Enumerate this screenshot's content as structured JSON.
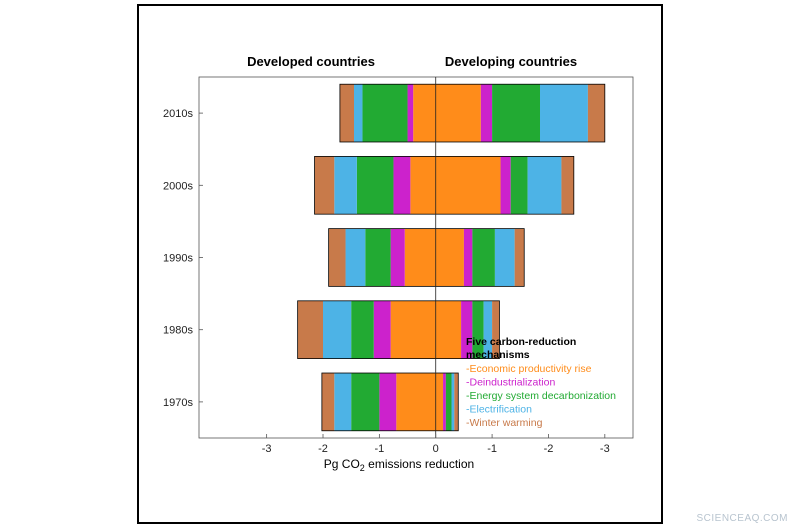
{
  "chart_data": {
    "type": "bar",
    "orientation": "horizontal-stacked-diverging",
    "panels": [
      "Developed countries",
      "Developing countries"
    ],
    "categories": [
      "2010s",
      "2000s",
      "1990s",
      "1980s",
      "1970s"
    ],
    "xlim": [
      -4.2,
      3.5
    ],
    "x_ticks": [
      {
        "value": -3,
        "label": "-3"
      },
      {
        "value": -2,
        "label": "-2"
      },
      {
        "value": -1,
        "label": "-1"
      },
      {
        "value": 0,
        "label": "0"
      },
      {
        "value": 1,
        "label": "-1"
      },
      {
        "value": 2,
        "label": "-2"
      },
      {
        "value": 3,
        "label": "-3"
      }
    ],
    "xlabel_main": "Pg CO",
    "xlabel_sub": "2",
    "xlabel_rest": " emissions reduction",
    "series": [
      {
        "name": "Economic productivity rise",
        "color": "#ff8c1a",
        "developed": [
          0.4,
          0.45,
          0.55,
          0.8,
          0.7
        ],
        "developing": [
          0.8,
          1.15,
          0.5,
          0.45,
          0.13
        ]
      },
      {
        "name": "Deindustrialization",
        "color": "#cc22cc",
        "developed": [
          0.1,
          0.3,
          0.25,
          0.3,
          0.3
        ],
        "developing": [
          0.2,
          0.18,
          0.15,
          0.2,
          0.05
        ]
      },
      {
        "name": "Energy system decarbonization",
        "color": "#22aa33",
        "developed": [
          0.8,
          0.65,
          0.45,
          0.4,
          0.5
        ],
        "developing": [
          0.85,
          0.3,
          0.4,
          0.2,
          0.1
        ]
      },
      {
        "name": "Electrification",
        "color": "#4db3e6",
        "developed": [
          0.15,
          0.4,
          0.35,
          0.5,
          0.3
        ],
        "developing": [
          0.85,
          0.6,
          0.35,
          0.15,
          0.05
        ]
      },
      {
        "name": "Winter warming",
        "color": "#c87a4a",
        "developed": [
          0.25,
          0.35,
          0.3,
          0.45,
          0.22
        ],
        "developing": [
          0.3,
          0.22,
          0.17,
          0.13,
          0.07
        ]
      }
    ],
    "legend": {
      "title_line1": "Five carbon-reduction",
      "title_line2": "mechanisms",
      "placement": "bottom-right",
      "items": [
        "-Economic productivity rise",
        "-Deindustrialization",
        "-Energy system decarbonization",
        "-Electrification",
        "-Winter warming"
      ]
    }
  },
  "watermark": "SCIENCEAQ.COM"
}
